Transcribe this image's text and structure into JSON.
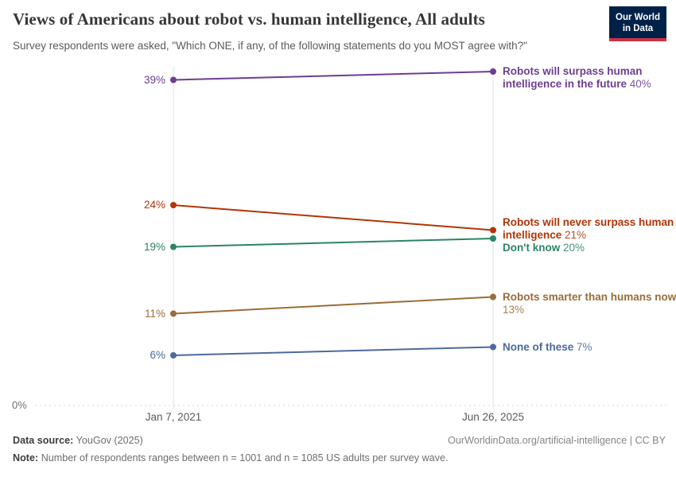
{
  "header": {
    "title": "Views of Americans about robot vs. human intelligence, All adults",
    "subtitle": "Survey respondents were asked, \"Which ONE, if any, of the following statements do you MOST agree with?\"",
    "logo": {
      "line1": "Our World",
      "line2": "in Data",
      "background_color": "#002147",
      "accent_color": "#cc3344"
    }
  },
  "chart_data": {
    "type": "line",
    "subtype": "slope-chart",
    "x": [
      "Jan 7, 2021",
      "Jun 26, 2025"
    ],
    "series": [
      {
        "name": "Robots will surpass human intelligence in the future",
        "values": [
          39,
          40
        ],
        "color": "#6d3e91",
        "label_dy": -8
      },
      {
        "name": "Robots will never surpass human intelligence",
        "values": [
          24,
          21
        ],
        "color": "#b13507",
        "label_dy": -18
      },
      {
        "name": "Don't know",
        "values": [
          19,
          20
        ],
        "color": "#2c8465",
        "label_dy": 4
      },
      {
        "name": "Robots smarter than humans now",
        "values": [
          11,
          13
        ],
        "color": "#996d39",
        "label_dy": -8
      },
      {
        "name": "None of these",
        "values": [
          6,
          7
        ],
        "color": "#4c6a9c",
        "label_dy": -8
      }
    ],
    "value_suffix": "%",
    "ylim": [
      0,
      41
    ],
    "y_baseline_label": "0%",
    "grid": "dashed-baseline-only",
    "legend_position": "right-of-endpoints",
    "start_labels": [
      "39%",
      "24%",
      "19%",
      "11%",
      "6%"
    ],
    "end_labels": [
      "40%",
      "21%",
      "20%",
      "13%",
      "7%"
    ]
  },
  "footer": {
    "source_label": "Data source:",
    "source_value": "YouGov (2025)",
    "license": "OurWorldinData.org/artificial-intelligence | CC BY",
    "note_label": "Note:",
    "note_value": "Number of respondents ranges between n = 1001 and n = 1085 US adults per survey wave."
  }
}
